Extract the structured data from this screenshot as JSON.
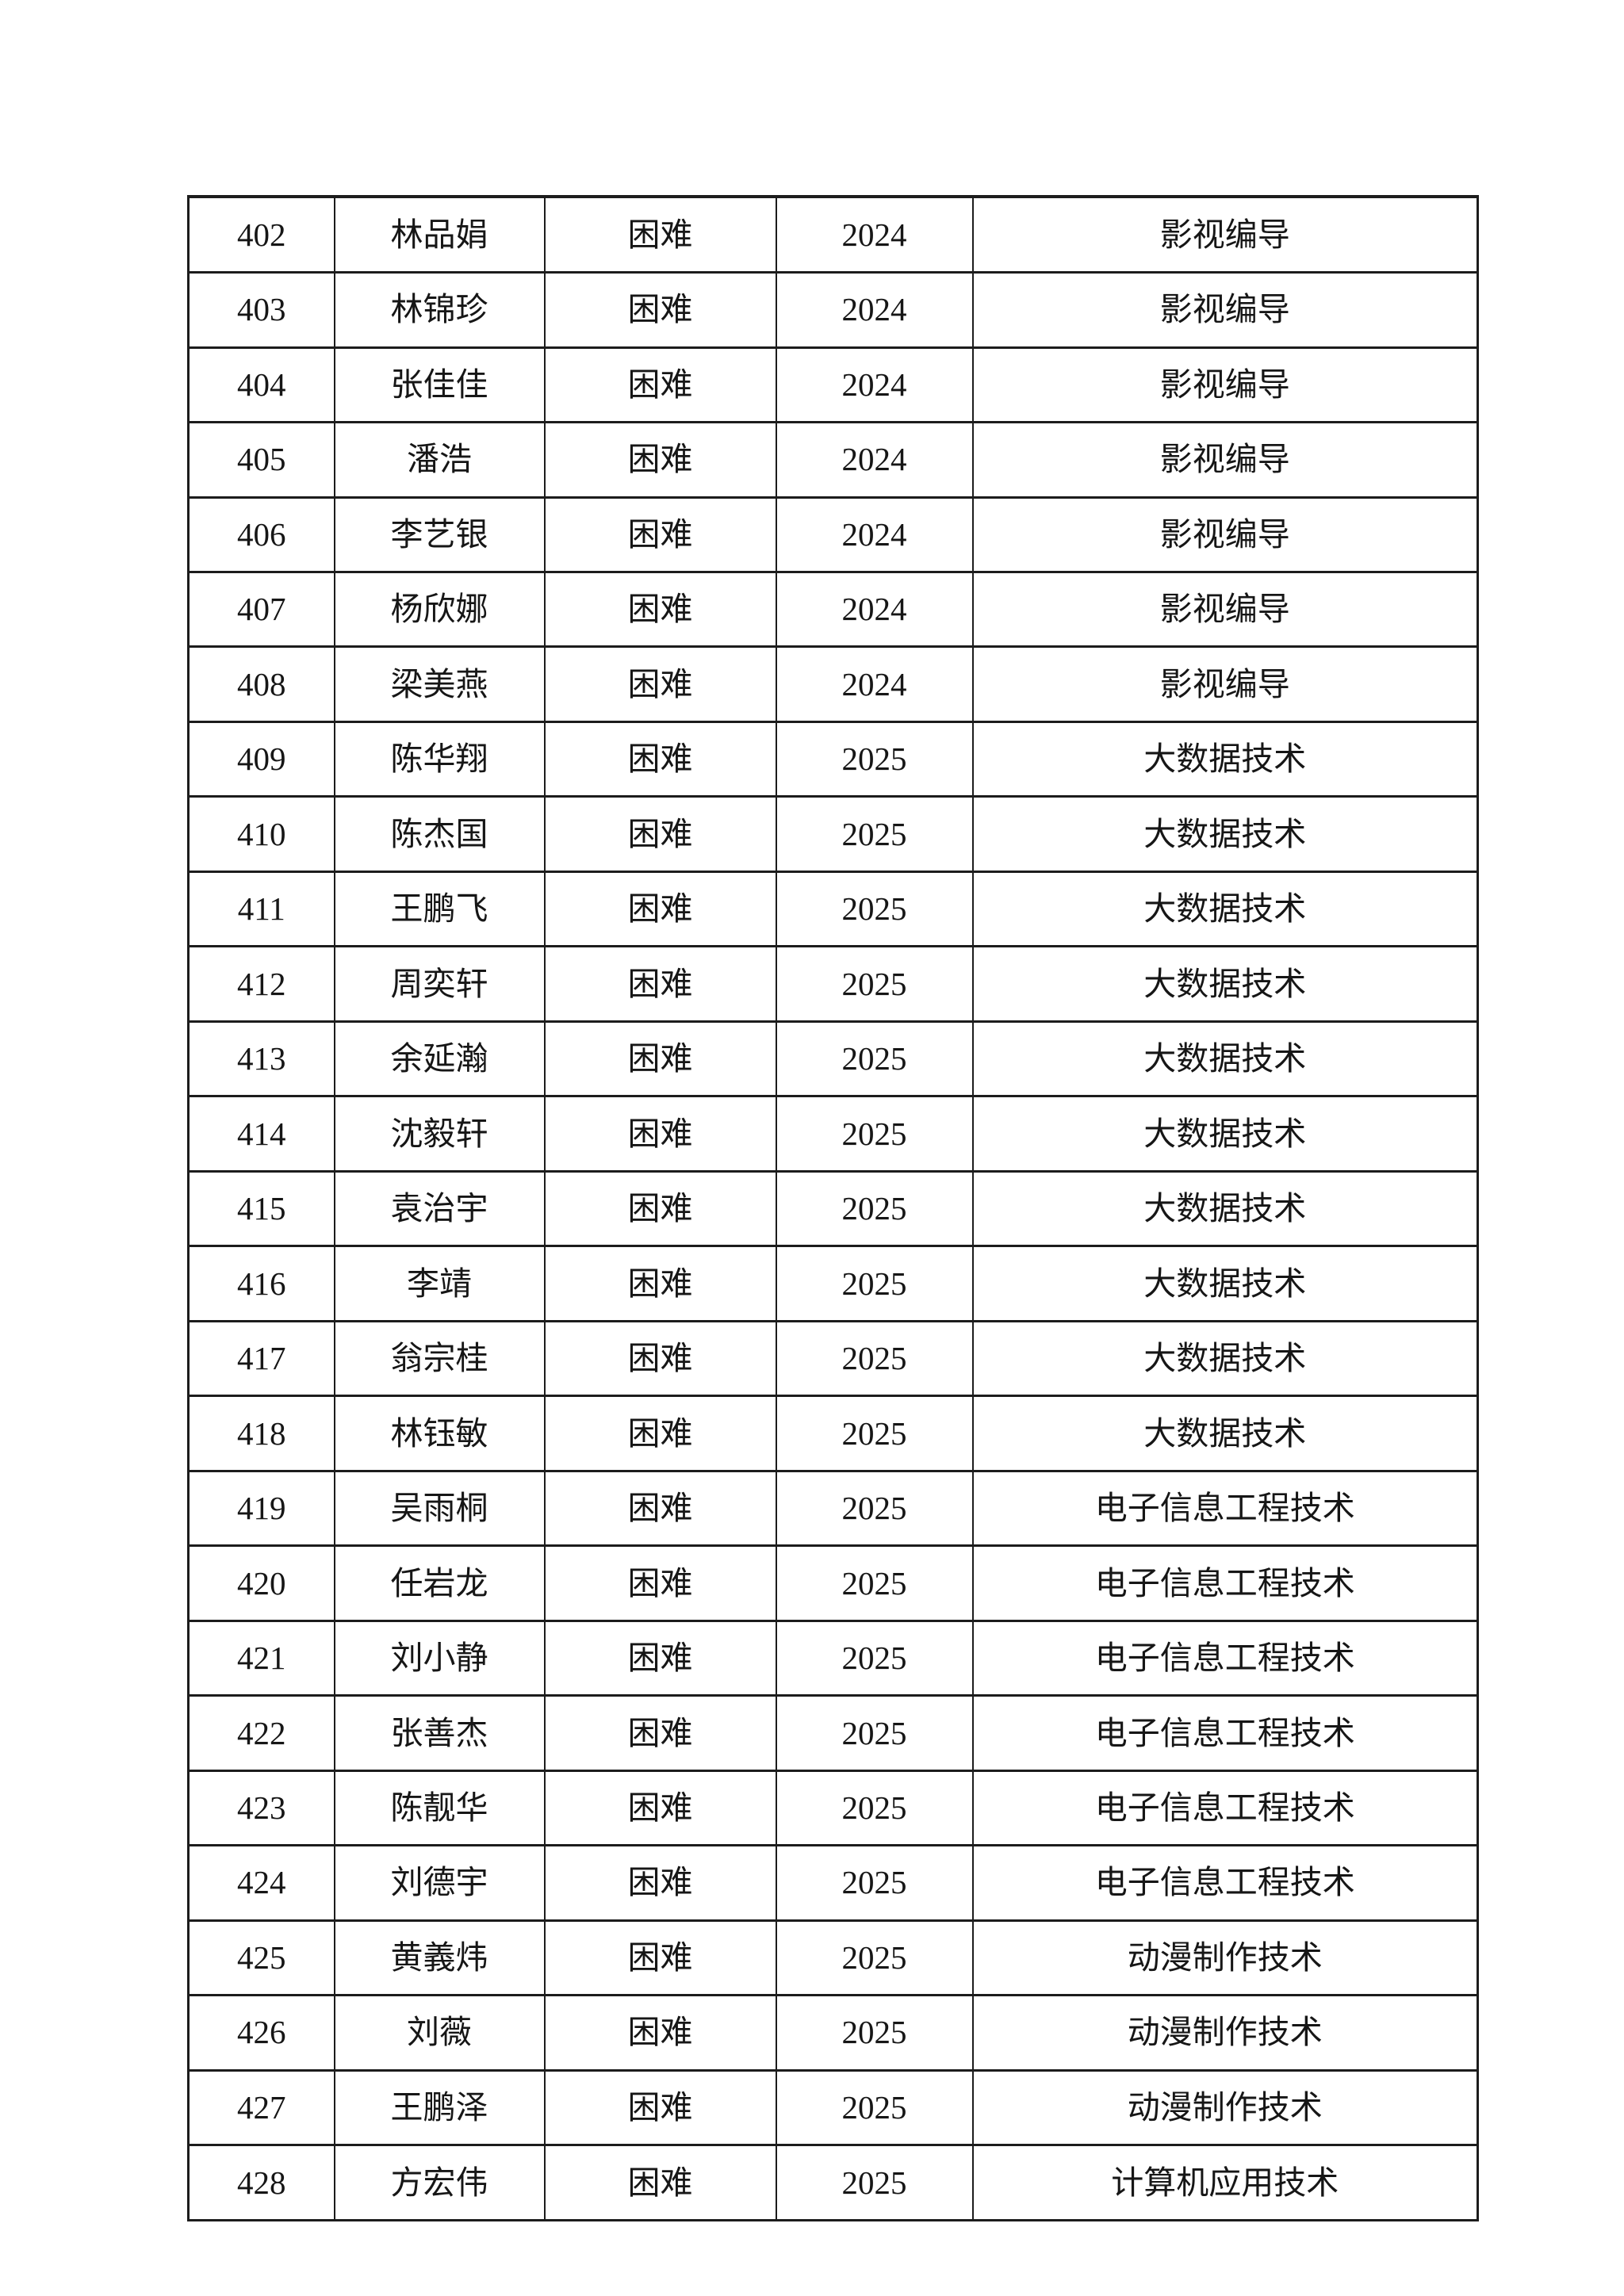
{
  "page": {
    "type": "student-roster-continuation-sheet"
  },
  "colors": {
    "text": "#161616",
    "border": "#1c1c1c",
    "page_background": "#ffffff"
  },
  "table": {
    "rows": [
      {
        "no": "402",
        "name": "林品娟",
        "status": "困难",
        "year": "2024",
        "major": "影视编导"
      },
      {
        "no": "403",
        "name": "林锦珍",
        "status": "困难",
        "year": "2024",
        "major": "影视编导"
      },
      {
        "no": "404",
        "name": "张佳佳",
        "status": "困难",
        "year": "2024",
        "major": "影视编导"
      },
      {
        "no": "405",
        "name": "潘浩",
        "status": "困难",
        "year": "2024",
        "major": "影视编导"
      },
      {
        "no": "406",
        "name": "李艺银",
        "status": "困难",
        "year": "2024",
        "major": "影视编导"
      },
      {
        "no": "407",
        "name": "杨欣娜",
        "status": "困难",
        "year": "2024",
        "major": "影视编导"
      },
      {
        "no": "408",
        "name": "梁美燕",
        "status": "困难",
        "year": "2024",
        "major": "影视编导"
      },
      {
        "no": "409",
        "name": "陈华翔",
        "status": "困难",
        "year": "2025",
        "major": "大数据技术"
      },
      {
        "no": "410",
        "name": "陈杰国",
        "status": "困难",
        "year": "2025",
        "major": "大数据技术"
      },
      {
        "no": "411",
        "name": "王鹏飞",
        "status": "困难",
        "year": "2025",
        "major": "大数据技术"
      },
      {
        "no": "412",
        "name": "周奕轩",
        "status": "困难",
        "year": "2025",
        "major": "大数据技术"
      },
      {
        "no": "413",
        "name": "余延瀚",
        "status": "困难",
        "year": "2025",
        "major": "大数据技术"
      },
      {
        "no": "414",
        "name": "沈毅轩",
        "status": "困难",
        "year": "2025",
        "major": "大数据技术"
      },
      {
        "no": "415",
        "name": "袁治宇",
        "status": "困难",
        "year": "2025",
        "major": "大数据技术"
      },
      {
        "no": "416",
        "name": "李靖",
        "status": "困难",
        "year": "2025",
        "major": "大数据技术"
      },
      {
        "no": "417",
        "name": "翁宗桂",
        "status": "困难",
        "year": "2025",
        "major": "大数据技术"
      },
      {
        "no": "418",
        "name": "林钰敏",
        "status": "困难",
        "year": "2025",
        "major": "大数据技术"
      },
      {
        "no": "419",
        "name": "吴雨桐",
        "status": "困难",
        "year": "2025",
        "major": "电子信息工程技术"
      },
      {
        "no": "420",
        "name": "任岩龙",
        "status": "困难",
        "year": "2025",
        "major": "电子信息工程技术"
      },
      {
        "no": "421",
        "name": "刘小静",
        "status": "困难",
        "year": "2025",
        "major": "电子信息工程技术"
      },
      {
        "no": "422",
        "name": "张善杰",
        "status": "困难",
        "year": "2025",
        "major": "电子信息工程技术"
      },
      {
        "no": "423",
        "name": "陈靓华",
        "status": "困难",
        "year": "2025",
        "major": "电子信息工程技术"
      },
      {
        "no": "424",
        "name": "刘德宇",
        "status": "困难",
        "year": "2025",
        "major": "电子信息工程技术"
      },
      {
        "no": "425",
        "name": "黄義炜",
        "status": "困难",
        "year": "2025",
        "major": "动漫制作技术"
      },
      {
        "no": "426",
        "name": "刘薇",
        "status": "困难",
        "year": "2025",
        "major": "动漫制作技术"
      },
      {
        "no": "427",
        "name": "王鹏泽",
        "status": "困难",
        "year": "2025",
        "major": "动漫制作技术"
      },
      {
        "no": "428",
        "name": "方宏伟",
        "status": "困难",
        "year": "2025",
        "major": "计算机应用技术"
      }
    ]
  }
}
